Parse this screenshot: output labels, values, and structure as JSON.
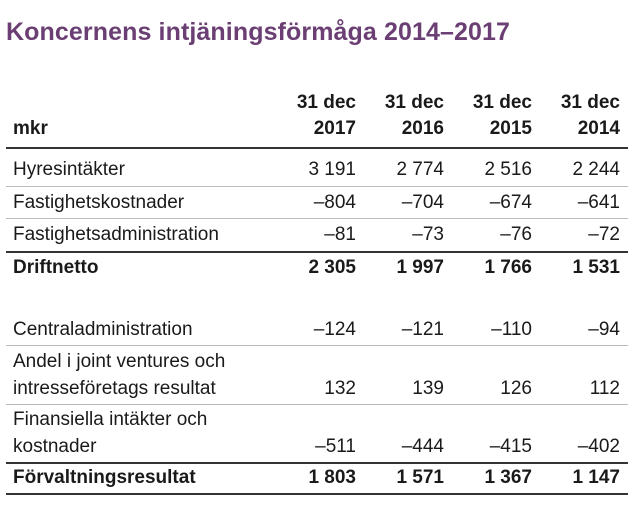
{
  "title": "Koncernens intjäningsförmåga 2014–2017",
  "unit_label": "mkr",
  "columns": [
    {
      "line1": "31 dec",
      "line2": "2017"
    },
    {
      "line1": "31 dec",
      "line2": "2016"
    },
    {
      "line1": "31 dec",
      "line2": "2015"
    },
    {
      "line1": "31 dec",
      "line2": "2014"
    }
  ],
  "rows": [
    {
      "label": [
        "Hyresintäkter"
      ],
      "values": [
        "3 191",
        "2 774",
        "2 516",
        "2 244"
      ],
      "bold": false
    },
    {
      "label": [
        "Fastighetskostnader"
      ],
      "values": [
        "–804",
        "–704",
        "–674",
        "–641"
      ],
      "bold": false
    },
    {
      "label": [
        "Fastighetsadministration"
      ],
      "values": [
        "–81",
        "–73",
        "–76",
        "–72"
      ],
      "bold": false
    },
    {
      "label": [
        "Driftnetto"
      ],
      "values": [
        "2 305",
        "1 997",
        "1 766",
        "1 531"
      ],
      "bold": true
    },
    {
      "label": [
        "Centraladministration"
      ],
      "values": [
        "–124",
        "–121",
        "–110",
        "–94"
      ],
      "bold": false
    },
    {
      "label": [
        "Andel i joint ventures och",
        "intresseföretags resultat"
      ],
      "values": [
        "132",
        "139",
        "126",
        "112"
      ],
      "bold": false
    },
    {
      "label": [
        "Finansiella intäkter och",
        "kostnader"
      ],
      "values": [
        "–511",
        "–444",
        "–415",
        "–402"
      ],
      "bold": false
    },
    {
      "label": [
        "Förvaltningsresultat"
      ],
      "values": [
        "1 803",
        "1 571",
        "1 367",
        "1 147"
      ],
      "bold": true
    }
  ]
}
